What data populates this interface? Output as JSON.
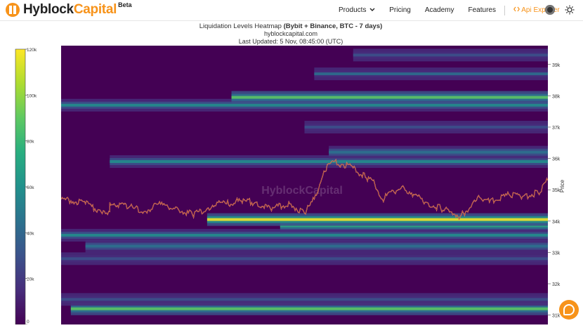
{
  "nav": {
    "brand_prefix": "Hyblock",
    "brand_suffix": "Capital",
    "brand_badge": "Beta",
    "items": [
      {
        "label": "Products",
        "dropdown": true
      },
      {
        "label": "Pricing"
      },
      {
        "label": "Academy"
      },
      {
        "label": "Features"
      }
    ],
    "api_label": "Api Explorer",
    "icons": [
      "chevron-down-icon",
      "code-icon",
      "avatar-icon",
      "sun-icon",
      "chat-icon"
    ]
  },
  "chart_data": {
    "type": "heatmap",
    "title_prefix": "Liquidation Levels Heatmap",
    "title_bold": "(Bybit + Binance, BTC - 7 days)",
    "subtitle": "hyblockcapital.com",
    "updated": "Last Updated: 5 Nov, 08:45:00 (UTC)",
    "watermark": "HyblockCapital",
    "ylabel": "Price",
    "ylim": [
      30700,
      39600
    ],
    "y_ticks": [
      {
        "value": 31000,
        "label": "31k"
      },
      {
        "value": 32000,
        "label": "32k"
      },
      {
        "value": 33000,
        "label": "33k"
      },
      {
        "value": 34000,
        "label": "34k"
      },
      {
        "value": 35000,
        "label": "35k"
      },
      {
        "value": 36000,
        "label": "36k"
      },
      {
        "value": 37000,
        "label": "37k"
      },
      {
        "value": 38000,
        "label": "38k"
      },
      {
        "value": 39000,
        "label": "39k"
      }
    ],
    "colorbar": {
      "min": 0,
      "max": 120000,
      "ticks": [
        {
          "value": 0,
          "label": "0"
        },
        {
          "value": 20000,
          "label": "20k"
        },
        {
          "value": 40000,
          "label": "40k"
        },
        {
          "value": 60000,
          "label": "60k"
        },
        {
          "value": 80000,
          "label": "80k"
        },
        {
          "value": 100000,
          "label": "100k"
        },
        {
          "value": 120000,
          "label": "120k"
        }
      ],
      "colors": [
        "#440154",
        "#472d7b",
        "#3b528b",
        "#2c728e",
        "#21918c",
        "#28ae80",
        "#5ec962",
        "#addc30",
        "#fde725"
      ]
    },
    "x_range": [
      0,
      1
    ],
    "price_path": {
      "x": [
        0,
        0.02,
        0.05,
        0.08,
        0.1,
        0.1,
        0.14,
        0.17,
        0.2,
        0.24,
        0.27,
        0.3,
        0.32,
        0.34,
        0.37,
        0.4,
        0.43,
        0.47,
        0.5,
        0.52,
        0.54,
        0.56,
        0.58,
        0.6,
        0.625,
        0.64,
        0.66,
        0.7,
        0.72,
        0.75,
        0.78,
        0.82,
        0.86,
        0.88,
        0.92,
        0.95,
        0.98,
        1.0
      ],
      "y": [
        34700,
        34650,
        34550,
        34350,
        34300,
        34600,
        34450,
        34300,
        34550,
        34400,
        34200,
        34400,
        34600,
        34550,
        34650,
        34600,
        34400,
        34550,
        34250,
        34700,
        35600,
        35900,
        35800,
        35700,
        35400,
        35300,
        34700,
        35100,
        34900,
        34600,
        34400,
        34150,
        34750,
        34600,
        34850,
        34800,
        34900,
        35300
      ]
    },
    "bands": [
      {
        "price": 31200,
        "start": 0.02,
        "strength": 90000
      },
      {
        "price": 31500,
        "start": 0.0,
        "strength": 35000
      },
      {
        "price": 32800,
        "start": 0.0,
        "strength": 30000
      },
      {
        "price": 33200,
        "start": 0.05,
        "strength": 45000
      },
      {
        "price": 33550,
        "start": 0.0,
        "strength": 65000
      },
      {
        "price": 33850,
        "start": 0.45,
        "strength": 80000
      },
      {
        "price": 34050,
        "start": 0.3,
        "strength": 115000
      },
      {
        "price": 35900,
        "start": 0.1,
        "strength": 55000
      },
      {
        "price": 36200,
        "start": 0.55,
        "strength": 50000
      },
      {
        "price": 37000,
        "start": 0.5,
        "strength": 30000
      },
      {
        "price": 37700,
        "start": 0.0,
        "strength": 60000
      },
      {
        "price": 37950,
        "start": 0.35,
        "strength": 95000
      },
      {
        "price": 38700,
        "start": 0.52,
        "strength": 40000
      },
      {
        "price": 39300,
        "start": 0.6,
        "strength": 35000
      }
    ]
  }
}
